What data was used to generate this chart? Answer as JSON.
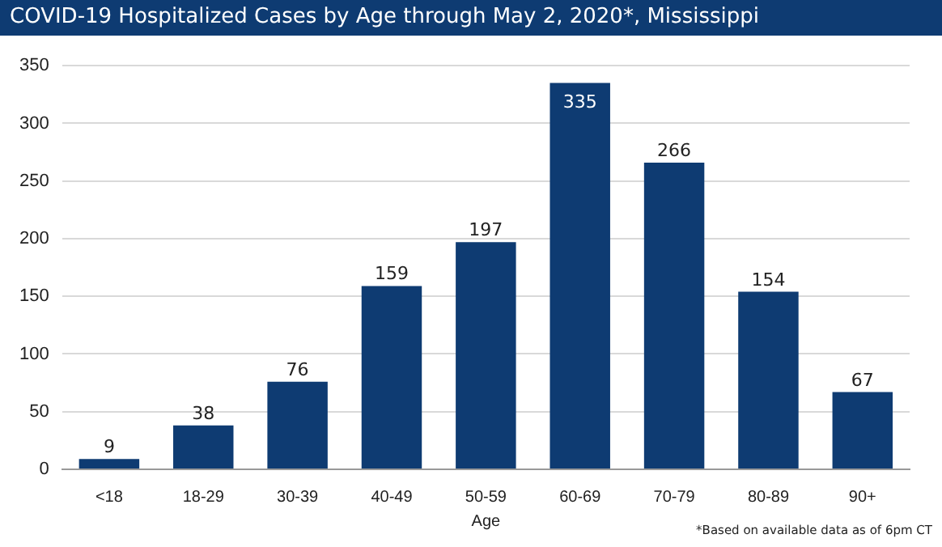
{
  "chart_data": {
    "type": "bar",
    "title": "COVID-19 Hospitalized Cases by Age through May 2, 2020*, Mississippi",
    "xlabel": "Age",
    "categories": [
      "<18",
      "18-29",
      "30-39",
      "40-49",
      "50-59",
      "60-69",
      "70-79",
      "80-89",
      "90+"
    ],
    "values": [
      9,
      38,
      76,
      159,
      197,
      335,
      266,
      154,
      67
    ],
    "color": "#0e3b72",
    "ylim": [
      0,
      350
    ],
    "yticks": [
      0,
      50,
      100,
      150,
      200,
      250,
      300,
      350
    ],
    "grid": "y",
    "legend": false,
    "data_labels": true,
    "annotations": [
      "*Based on available data as of 6pm CT"
    ]
  }
}
